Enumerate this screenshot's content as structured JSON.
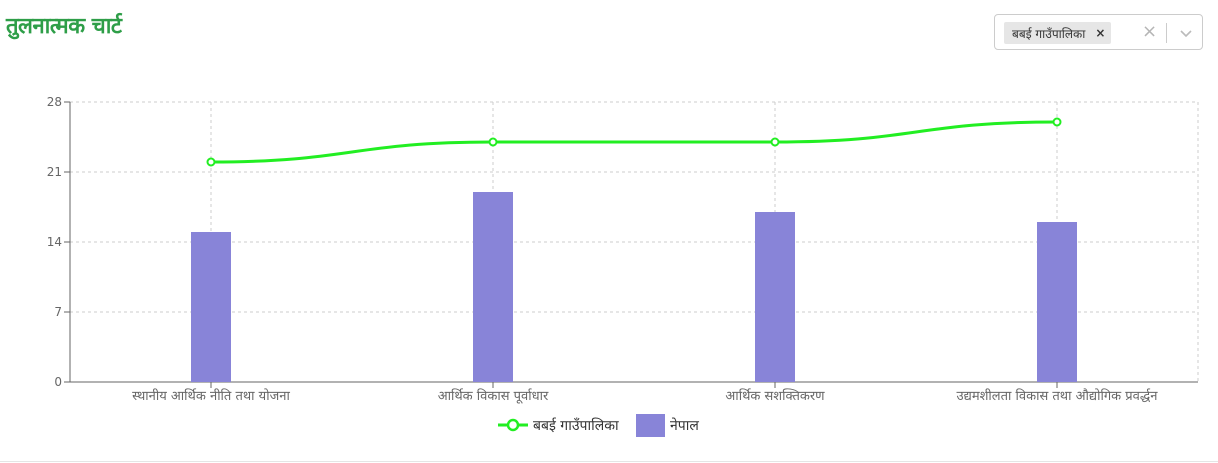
{
  "page": {
    "title": "तुलनात्मक चार्ट"
  },
  "selector": {
    "selected": "बबई गाउँपालिका",
    "remove_glyph": "×",
    "clear_glyph": "×"
  },
  "chart_data": {
    "type": "bar",
    "categories": [
      "स्थानीय आर्थिक नीति तथा योजना",
      "आर्थिक विकास पूर्वाधार",
      "आर्थिक सशक्तिकरण",
      "उद्यमशीलता विकास तथा औद्योगिक प्रवर्द्धन"
    ],
    "series": [
      {
        "name": "बबई गाउँपालिका",
        "type": "line",
        "color": "#22ee22",
        "values": [
          22,
          24,
          24,
          26
        ]
      },
      {
        "name": "नेपाल",
        "type": "bar",
        "color": "#8884d8",
        "values": [
          15,
          19,
          17,
          16
        ]
      }
    ],
    "ylim": [
      0,
      28
    ],
    "yticks": [
      "0",
      "7",
      "14",
      "21",
      "28"
    ],
    "grid": true,
    "legend_position": "bottom"
  }
}
